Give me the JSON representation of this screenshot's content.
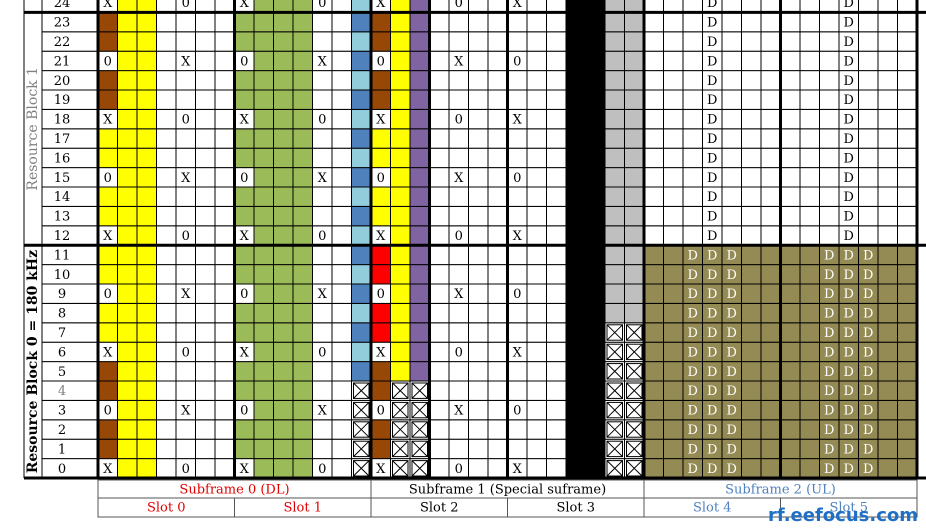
{
  "axis": {
    "rb1": "Resource Block 1",
    "rb0": "Resource Block 0 = 180 kHz"
  },
  "row_labels": [
    "0",
    "1",
    "2",
    "3",
    "4",
    "5",
    "6",
    "7",
    "8",
    "9",
    "10",
    "11",
    "12",
    "13",
    "14",
    "15",
    "16",
    "17",
    "18",
    "19",
    "20",
    "21",
    "22",
    "23",
    "24"
  ],
  "symbols": {
    "cross": "X",
    "zero": "0",
    "data": "D"
  },
  "subframes": [
    "Subframe 0 (DL)",
    "Subframe 1 (Special suframe)",
    "Subframe 2 (UL)"
  ],
  "slots": [
    "Slot 0",
    "Slot 1",
    "Slot 2",
    "Slot 3",
    "Slot 4",
    "Slot 5"
  ],
  "watermark": "rf.eefocus.com"
}
